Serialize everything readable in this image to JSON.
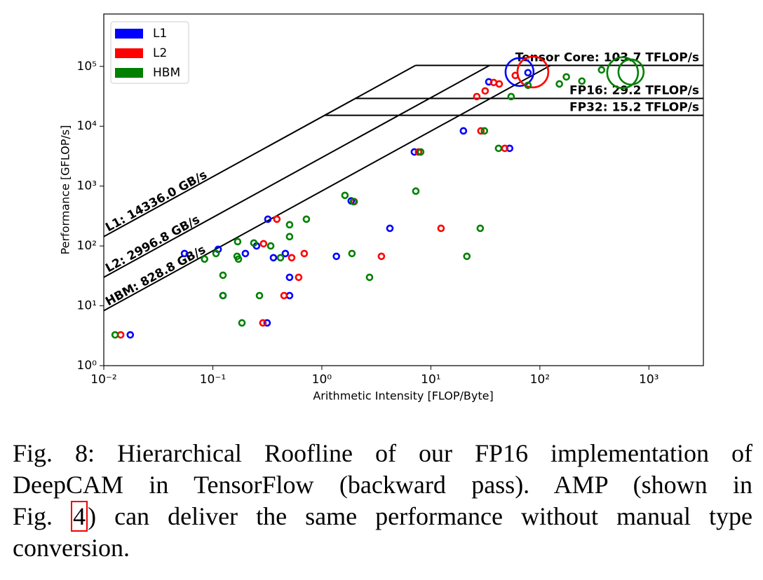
{
  "chart_data": {
    "type": "roofline",
    "xlabel": "Arithmetic Intensity [FLOP/Byte]",
    "ylabel": "Performance [GFLOP/s]",
    "xscale": "log",
    "yscale": "log",
    "xlim": [
      0.01,
      3162
    ],
    "ylim": [
      1,
      750000
    ],
    "xticks": [
      {
        "value": 0.01,
        "label": "10⁻²"
      },
      {
        "value": 0.1,
        "label": "10⁻¹"
      },
      {
        "value": 1,
        "label": "10⁰"
      },
      {
        "value": 10,
        "label": "10¹"
      },
      {
        "value": 100,
        "label": "10²"
      },
      {
        "value": 1000,
        "label": "10³"
      }
    ],
    "yticks": [
      {
        "value": 1,
        "label": "10⁰"
      },
      {
        "value": 10,
        "label": "10¹"
      },
      {
        "value": 100,
        "label": "10²"
      },
      {
        "value": 1000,
        "label": "10³"
      },
      {
        "value": 10000,
        "label": "10⁴"
      },
      {
        "value": 100000,
        "label": "10⁵"
      }
    ],
    "legend": "upper left",
    "ceilings": [
      {
        "name": "Tensor Core: 103.7 TFLOP/s",
        "value": 103700
      },
      {
        "name": "FP16: 29.2 TFLOP/s",
        "value": 29200
      },
      {
        "name": "FP32: 15.2 TFLOP/s",
        "value": 15200
      }
    ],
    "bandwidths": [
      {
        "name": "L1: 14336.0 GB/s",
        "value": 14336
      },
      {
        "name": "L2: 2996.8 GB/s",
        "value": 2996.8
      },
      {
        "name": "HBM: 828.8 GB/s",
        "value": 828.8
      }
    ],
    "series": [
      {
        "name": "L1",
        "color": "#0000ff",
        "x": [
          0.0175,
          0.315,
          0.506,
          0.124,
          0.506,
          0.055,
          0.199,
          0.36,
          0.463,
          1.36,
          0.112,
          0.252,
          0.32,
          4.21,
          1.86,
          7.06,
          19.9,
          52.8,
          34.0,
          65.1,
          77.8
        ],
        "values": [
          3.27,
          5.18,
          14.8,
          14.8,
          29.9,
          74.7,
          74.7,
          63.6,
          74.7,
          67.1,
          87.8,
          100,
          280,
          197,
          565,
          3720,
          8370,
          4270,
          55200,
          80600,
          78500
        ],
        "sizes": [
          1,
          1,
          1,
          1,
          1,
          1,
          1,
          1,
          1,
          1,
          1,
          1,
          1,
          1,
          1,
          1,
          1,
          1,
          1,
          5,
          1
        ]
      },
      {
        "name": "L2",
        "color": "#ff0000",
        "x": [
          0.0143,
          0.288,
          0.45,
          0.613,
          0.529,
          0.292,
          0.69,
          0.387,
          3.52,
          12.4,
          1.98,
          7.71,
          28.8,
          47.7,
          26.4,
          31.5,
          37.7,
          42.4,
          59.5,
          86.3
        ],
        "values": [
          3.27,
          5.18,
          14.8,
          29.9,
          63.6,
          109,
          74.7,
          280,
          67.1,
          197,
          550,
          3720,
          8370,
          4270,
          31300,
          38900,
          53800,
          50900,
          70500,
          80600
        ],
        "sizes": [
          1,
          1,
          1,
          1,
          1,
          1,
          1,
          1,
          1,
          1,
          1,
          1,
          1,
          1,
          1,
          1,
          1,
          1,
          1,
          5.5
        ]
      },
      {
        "name": "HBM",
        "color": "#008000",
        "x": [
          0.0127,
          0.185,
          0.268,
          0.124,
          0.124,
          2.74,
          0.084,
          0.107,
          0.167,
          0.172,
          0.418,
          1.89,
          21.4,
          0.238,
          0.34,
          0.506,
          0.506,
          0.722,
          0.169,
          1.63,
          1.95,
          7.28,
          8.07,
          31.0,
          41.8,
          28.4,
          54.5,
          77.8,
          151,
          175,
          243,
          368,
          574,
          686
        ],
        "values": [
          3.27,
          5.18,
          14.8,
          14.8,
          32.4,
          29.9,
          60.3,
          74.7,
          67.1,
          60.3,
          63.6,
          74.7,
          67.1,
          112,
          100,
          143,
          226,
          280,
          118,
          700,
          550,
          824,
          3720,
          8370,
          4270,
          197,
          31300,
          48300,
          50900,
          66700,
          56800,
          87300,
          78500,
          80600
        ],
        "sizes": [
          1,
          1,
          1,
          1,
          1,
          1,
          1,
          1,
          1,
          1,
          1,
          1,
          1,
          1,
          1,
          1,
          1,
          1,
          1,
          1,
          1,
          1,
          1,
          1,
          1,
          1,
          1,
          1,
          1,
          1,
          1,
          1,
          5.5,
          4.5
        ]
      }
    ]
  },
  "caption": {
    "line1": "Fig. 8: Hierarchical Roofline of our FP16 implementation of",
    "line2": "DeepCAM in TensorFlow (backward pass). AMP (shown in",
    "line3_start": "Fig.",
    "line3_ref": "4",
    "line3_end": ") can deliver the same performance without manual type",
    "line4": "conversion."
  }
}
